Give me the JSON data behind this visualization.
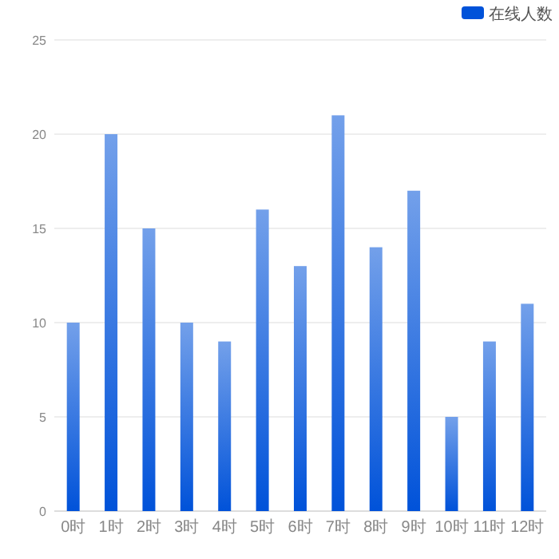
{
  "chart_data": {
    "type": "bar",
    "categories": [
      "0时",
      "1时",
      "2时",
      "3时",
      "4时",
      "5时",
      "6时",
      "7时",
      "8时",
      "9时",
      "10时",
      "11时",
      "12时"
    ],
    "series": [
      {
        "name": "在线人数",
        "color": "#0052d9",
        "values": [
          10,
          20,
          15,
          10,
          9,
          16,
          13,
          21,
          14,
          17,
          5,
          9,
          11
        ]
      }
    ],
    "ylim": [
      0,
      25
    ],
    "yticks": [
      0,
      5,
      10,
      15,
      20,
      25
    ],
    "grid": "y",
    "legend": "top right"
  }
}
